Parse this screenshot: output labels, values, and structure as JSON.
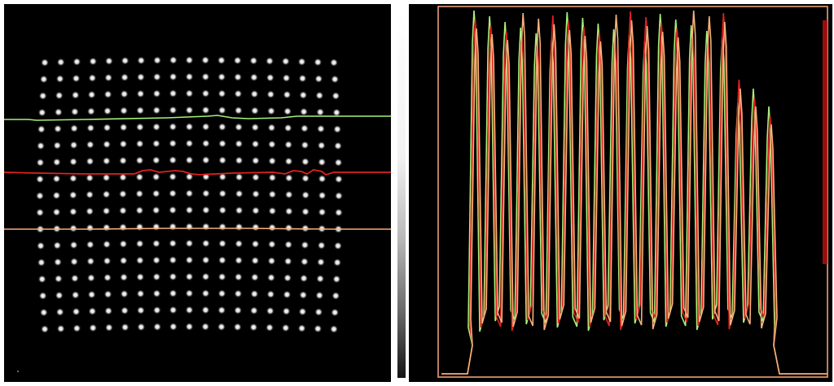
{
  "image": {
    "description_free": true,
    "colors": {
      "background": "#000000",
      "spot": "#ffffff",
      "profile_green": "#a8f07a",
      "profile_red": "#e02020",
      "profile_orange": "#f5b07a",
      "frame": "#e8a07a"
    }
  },
  "panels": {
    "spot_grid": {
      "rows": 17,
      "cols": 19
    },
    "profiles": [
      {
        "name": "green-profile",
        "color": "#a8f07a"
      },
      {
        "name": "red-profile",
        "color": "#e02020"
      },
      {
        "name": "orange-profile",
        "color": "#f5b07a"
      }
    ],
    "peak_count": 20
  }
}
